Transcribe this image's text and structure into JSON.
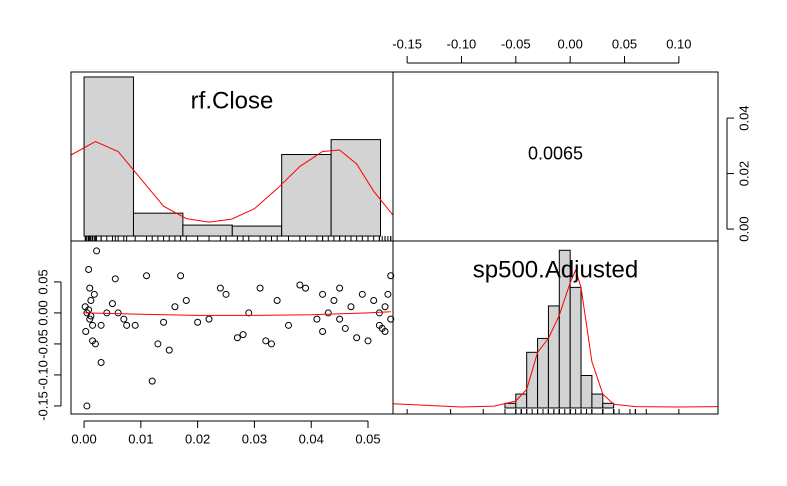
{
  "chart_data": [
    {
      "type": "histogram",
      "title": "rf.Close",
      "color": "#d3d3d3",
      "bins": [
        0,
        0.0087,
        0.0174,
        0.0261,
        0.0348,
        0.0435,
        0.0522
      ],
      "values": [
        32,
        4.6,
        2.2,
        2,
        16.4,
        19.4
      ],
      "xlim": [
        -0.0023,
        0.0544
      ],
      "ylim": [
        -1,
        33
      ],
      "density": {
        "color": "#ff0000",
        "x": [
          -0.0023,
          0.002,
          0.006,
          0.01,
          0.014,
          0.018,
          0.022,
          0.026,
          0.03,
          0.034,
          0.038,
          0.042,
          0.045,
          0.048,
          0.051,
          0.0544
        ],
        "y": [
          16.3,
          19,
          17,
          11.5,
          6,
          3.5,
          2.8,
          3.4,
          5.5,
          9.5,
          14,
          17,
          17.3,
          14.5,
          9,
          4.2
        ]
      }
    },
    {
      "type": "correlation",
      "value": 0.0065,
      "xlim": [
        -0.163,
        0.136
      ],
      "ylim": [
        -0.0043,
        0.0566
      ],
      "xticks": [
        -0.15,
        {
          "value": -0.1,
          "label": "-0.10"
        },
        -0.05,
        {
          "value": 0,
          "label": "0.00"
        },
        0.05,
        {
          "value": 0.1,
          "label": "0.10"
        }
      ],
      "yticks": [
        {
          "value": 0,
          "label": "0.00"
        },
        0.02,
        0.04
      ]
    },
    {
      "type": "scatter",
      "xlim": [
        -0.0023,
        0.0544
      ],
      "ylim": [
        -0.163,
        0.116
      ],
      "xticks": [
        {
          "value": 0,
          "label": "0.00"
        },
        0.01,
        0.02,
        0.03,
        0.04,
        0.05
      ],
      "yticks": [
        -0.15,
        {
          "value": -0.1,
          "label": "-0.10"
        },
        -0.05,
        {
          "value": 0,
          "label": "0.00"
        },
        0.05
      ],
      "x": [
        0.0005,
        0.0008,
        0.001,
        0.0012,
        0.0002,
        0.0005,
        0.001,
        0.0015,
        0.0003,
        0.0008,
        0.0012,
        0.0018,
        0.002,
        0.0022,
        0.0015,
        0.003,
        0.003,
        0.004,
        0.005,
        0.0055,
        0.006,
        0.007,
        0.0075,
        0.009,
        0.011,
        0.012,
        0.013,
        0.014,
        0.015,
        0.016,
        0.017,
        0.018,
        0.02,
        0.022,
        0.024,
        0.025,
        0.027,
        0.028,
        0.029,
        0.031,
        0.033,
        0.032,
        0.034,
        0.036,
        0.038,
        0.039,
        0.041,
        0.042,
        0.042,
        0.043,
        0.044,
        0.045,
        0.045,
        0.046,
        0.047,
        0.048,
        0.049,
        0.05,
        0.051,
        0.052,
        0.052,
        0.053,
        0.053,
        0.054,
        0.0535,
        0.054,
        0.0525
      ],
      "y": [
        -0.15,
        0.07,
        0.04,
        0.02,
        0.01,
        0,
        -0.01,
        -0.02,
        -0.03,
        0.005,
        -0.005,
        0.03,
        -0.05,
        0.1,
        -0.045,
        -0.02,
        -0.08,
        0,
        0.015,
        0.055,
        0,
        -0.01,
        -0.02,
        -0.02,
        0.06,
        -0.11,
        -0.05,
        -0.015,
        -0.06,
        0.01,
        0.06,
        0.02,
        -0.015,
        -0.01,
        0.04,
        0.03,
        -0.04,
        -0.035,
        0,
        0.04,
        -0.05,
        -0.045,
        0.02,
        -0.02,
        0.045,
        0.04,
        -0.01,
        0.03,
        -0.03,
        0,
        0.02,
        0.04,
        -0.01,
        -0.025,
        0.01,
        -0.04,
        0.03,
        -0.045,
        0.02,
        0,
        -0.02,
        0.01,
        -0.03,
        0.06,
        0.03,
        -0.01,
        -0.025
      ],
      "smooth": {
        "color": "#ff0000",
        "x": [
          0,
          0.01,
          0.02,
          0.03,
          0.04,
          0.05,
          0.054
        ],
        "y": [
          0,
          -0.002,
          -0.004,
          -0.004,
          -0.003,
          0,
          0.002
        ]
      }
    },
    {
      "type": "histogram",
      "title": "sp500.Adjusted",
      "color": "#d3d3d3",
      "bins": [
        -0.06,
        -0.05,
        -0.04,
        -0.03,
        -0.02,
        -0.01,
        0,
        0.01,
        0.02,
        0.03,
        0.04
      ],
      "values": [
        1,
        3,
        12,
        15,
        22,
        34,
        26,
        7,
        3,
        1
      ],
      "xlim": [
        -0.163,
        0.136
      ],
      "ylim": [
        -1.3,
        36
      ],
      "density": {
        "color": "#ff0000",
        "x": [
          -0.163,
          -0.1,
          -0.07,
          -0.05,
          -0.04,
          -0.03,
          -0.02,
          -0.01,
          0,
          0.005,
          0.01,
          0.02,
          0.03,
          0.04,
          0.06,
          0.1,
          0.136
        ],
        "y": [
          0.9,
          0.2,
          0.4,
          1.5,
          4,
          12,
          15,
          20,
          27,
          29.7,
          26,
          10,
          3,
          0.8,
          0.3,
          0.2,
          0.3
        ]
      }
    }
  ]
}
